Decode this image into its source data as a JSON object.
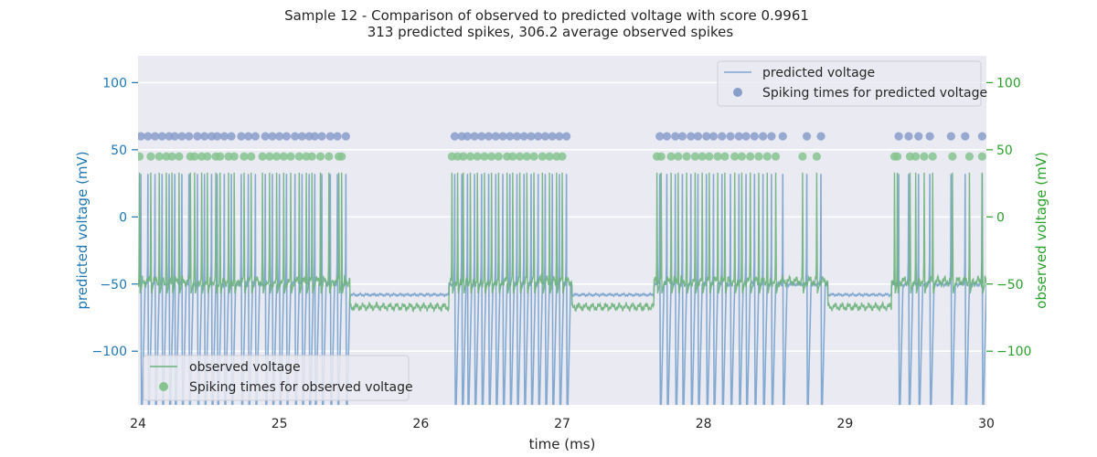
{
  "chart_data": {
    "type": "line",
    "title": "Sample 12 - Comparison of observed to predicted voltage with score 0.9961",
    "subtitle": "313 predicted spikes, 306.2 average observed spikes",
    "xlabel": "time (ms)",
    "ylabel_left": "predicted voltage (mV)",
    "ylabel_right": "observed voltage (mV)",
    "xlim": [
      24,
      30
    ],
    "ylim_left": [
      -140,
      120
    ],
    "ylim_right": [
      -140,
      120
    ],
    "x_ticks": [
      24,
      25,
      26,
      27,
      28,
      29,
      30
    ],
    "x_tick_labels": [
      "24",
      "25",
      "26",
      "27",
      "28",
      "29",
      "30"
    ],
    "y_ticks": [
      100,
      50,
      0,
      -50,
      -100
    ],
    "y_tick_labels": [
      "100",
      "50",
      "0",
      "−50",
      "−100"
    ],
    "grid": true,
    "colors": {
      "predicted": "#7ea6cf",
      "observed": "#6bb27a",
      "predicted_marker": "#8a9ecb",
      "observed_marker": "#86c48f",
      "left_axis": "#1f77b4",
      "right_axis": "#2ca02c",
      "plot_background": "#eaeaf2"
    },
    "legend_top_right": {
      "line": "predicted voltage",
      "marker": "Spiking times for predicted voltage"
    },
    "legend_bottom_left": {
      "line": "observed voltage",
      "marker": "Spiking times for observed voltage"
    },
    "predicted_marker_level": 60,
    "observed_marker_level": 45,
    "baselines": {
      "predicted_active": -50,
      "predicted_rest": -58,
      "observed_active": -48,
      "observed_rest": -67
    },
    "series": [
      {
        "name": "predicted voltage",
        "spike_times": [
          24.02,
          24.07,
          24.12,
          24.17,
          24.22,
          24.26,
          24.31,
          24.36,
          24.42,
          24.47,
          24.52,
          24.56,
          24.61,
          24.66,
          24.73,
          24.78,
          24.83,
          24.9,
          24.95,
          25.0,
          25.05,
          25.11,
          25.16,
          25.21,
          25.25,
          25.3,
          25.36,
          25.41,
          25.47,
          26.24,
          26.29,
          26.33,
          26.38,
          26.43,
          26.48,
          26.53,
          26.58,
          26.63,
          26.68,
          26.73,
          26.78,
          26.83,
          26.88,
          26.93,
          26.98,
          27.03,
          27.69,
          27.74,
          27.8,
          27.85,
          27.91,
          27.96,
          28.02,
          28.07,
          28.13,
          28.19,
          28.25,
          28.3,
          28.36,
          28.42,
          28.48,
          28.56,
          28.73,
          28.83,
          29.38,
          29.45,
          29.52,
          29.6,
          29.75,
          29.85,
          29.97
        ]
      },
      {
        "name": "observed voltage",
        "spike_times": [
          24.01,
          24.09,
          24.15,
          24.2,
          24.24,
          24.29,
          24.37,
          24.4,
          24.45,
          24.49,
          24.55,
          24.58,
          24.64,
          24.68,
          24.75,
          24.8,
          24.88,
          24.93,
          24.98,
          25.03,
          25.08,
          25.14,
          25.19,
          25.23,
          25.29,
          25.35,
          25.42,
          25.44,
          26.22,
          26.26,
          26.3,
          26.35,
          26.4,
          26.45,
          26.5,
          26.55,
          26.61,
          26.65,
          26.7,
          26.75,
          26.8,
          26.86,
          26.91,
          26.96,
          27.0,
          27.67,
          27.7,
          27.77,
          27.82,
          27.88,
          27.94,
          27.99,
          28.04,
          28.1,
          28.15,
          28.22,
          28.27,
          28.33,
          28.39,
          28.45,
          28.51,
          28.7,
          28.8,
          29.35,
          29.37,
          29.46,
          29.5,
          29.56,
          29.62,
          29.76,
          29.88,
          29.97
        ]
      }
    ]
  }
}
